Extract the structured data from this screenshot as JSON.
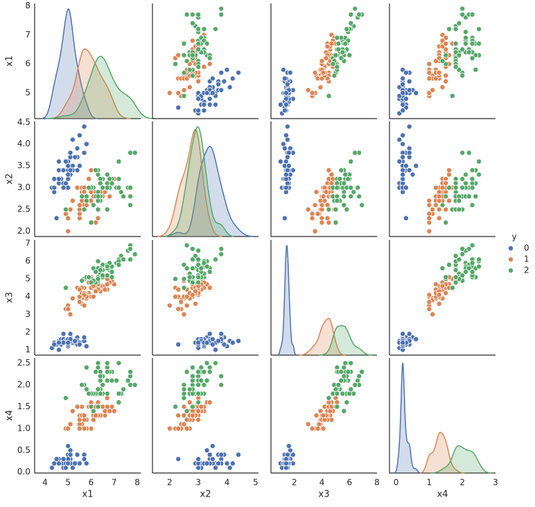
{
  "chart_data": {
    "type": "pairplot",
    "variables": [
      {
        "name": "x1",
        "xlim": [
          3.55,
          8.15
        ],
        "xticks": [
          4,
          5,
          6,
          7,
          8
        ],
        "ylim": [
          4.12,
          8.08
        ],
        "yticks": [
          5,
          6,
          7,
          8
        ]
      },
      {
        "name": "x2",
        "xlim": [
          1.4,
          5.1
        ],
        "xticks": [
          2,
          3,
          4,
          5
        ],
        "ylim": [
          1.88,
          4.52
        ],
        "yticks": [
          {
            "value": 2,
            "label": "2.0"
          },
          {
            "value": 2.5,
            "label": "2.5"
          },
          {
            "value": 3,
            "label": "3.0"
          },
          {
            "value": 3.5,
            "label": "3.5"
          },
          {
            "value": 4,
            "label": "4.0"
          },
          {
            "value": 4.5,
            "label": "4.5"
          }
        ]
      },
      {
        "name": "x3",
        "xlim": [
          0.3,
          8.0
        ],
        "xticks": [
          2,
          4,
          6,
          8
        ],
        "ylim": [
          0.7,
          7.2
        ],
        "yticks": [
          1,
          2,
          3,
          4,
          5,
          6,
          7
        ]
      },
      {
        "name": "x4",
        "xlim": [
          -0.2,
          3.0
        ],
        "xticks": [
          0,
          1,
          2,
          3
        ],
        "ylim": [
          -0.02,
          2.62
        ],
        "yticks": [
          {
            "value": 0,
            "label": "0.0"
          },
          {
            "value": 0.5,
            "label": "0.5"
          },
          {
            "value": 1,
            "label": "1.0"
          },
          {
            "value": 1.5,
            "label": "1.5"
          },
          {
            "value": 2,
            "label": "2.0"
          },
          {
            "value": 2.5,
            "label": "2.5"
          }
        ]
      }
    ],
    "legend_title": "y",
    "legend": "right",
    "series": [
      {
        "name": "0",
        "color": "#4c72b0",
        "values": [
          [
            5.1,
            3.5,
            1.4,
            0.2
          ],
          [
            4.9,
            3.0,
            1.4,
            0.2
          ],
          [
            4.7,
            3.2,
            1.3,
            0.2
          ],
          [
            4.6,
            3.1,
            1.5,
            0.2
          ],
          [
            5.0,
            3.6,
            1.4,
            0.2
          ],
          [
            5.4,
            3.9,
            1.7,
            0.4
          ],
          [
            4.6,
            3.4,
            1.4,
            0.3
          ],
          [
            5.0,
            3.4,
            1.5,
            0.2
          ],
          [
            4.4,
            2.9,
            1.4,
            0.2
          ],
          [
            4.9,
            3.1,
            1.5,
            0.1
          ],
          [
            5.4,
            3.7,
            1.5,
            0.2
          ],
          [
            4.8,
            3.4,
            1.6,
            0.2
          ],
          [
            4.8,
            3.0,
            1.4,
            0.1
          ],
          [
            4.3,
            3.0,
            1.1,
            0.1
          ],
          [
            5.8,
            4.0,
            1.2,
            0.2
          ],
          [
            5.7,
            4.4,
            1.5,
            0.4
          ],
          [
            5.4,
            3.9,
            1.3,
            0.4
          ],
          [
            5.1,
            3.5,
            1.4,
            0.3
          ],
          [
            5.7,
            3.8,
            1.7,
            0.3
          ],
          [
            5.1,
            3.8,
            1.5,
            0.3
          ],
          [
            5.4,
            3.4,
            1.7,
            0.2
          ],
          [
            5.1,
            3.7,
            1.5,
            0.4
          ],
          [
            4.6,
            3.6,
            1.0,
            0.2
          ],
          [
            5.1,
            3.3,
            1.7,
            0.5
          ],
          [
            4.8,
            3.4,
            1.9,
            0.2
          ],
          [
            5.0,
            3.0,
            1.6,
            0.2
          ],
          [
            5.0,
            3.4,
            1.6,
            0.4
          ],
          [
            5.2,
            3.5,
            1.5,
            0.2
          ],
          [
            5.2,
            3.4,
            1.4,
            0.2
          ],
          [
            4.7,
            3.2,
            1.6,
            0.2
          ],
          [
            4.8,
            3.1,
            1.6,
            0.2
          ],
          [
            5.4,
            3.4,
            1.5,
            0.4
          ],
          [
            5.2,
            4.1,
            1.5,
            0.1
          ],
          [
            5.5,
            4.2,
            1.4,
            0.2
          ],
          [
            4.9,
            3.1,
            1.5,
            0.2
          ],
          [
            5.0,
            3.2,
            1.2,
            0.2
          ],
          [
            5.5,
            3.5,
            1.3,
            0.2
          ],
          [
            4.9,
            3.6,
            1.4,
            0.1
          ],
          [
            4.4,
            3.0,
            1.3,
            0.2
          ],
          [
            5.1,
            3.4,
            1.5,
            0.2
          ],
          [
            5.0,
            3.5,
            1.3,
            0.3
          ],
          [
            4.5,
            2.3,
            1.3,
            0.3
          ],
          [
            4.4,
            3.2,
            1.3,
            0.2
          ],
          [
            5.0,
            3.5,
            1.6,
            0.6
          ],
          [
            5.1,
            3.8,
            1.9,
            0.4
          ],
          [
            4.8,
            3.0,
            1.4,
            0.3
          ],
          [
            5.1,
            3.8,
            1.6,
            0.2
          ],
          [
            4.6,
            3.2,
            1.4,
            0.2
          ],
          [
            5.3,
            3.7,
            1.5,
            0.2
          ],
          [
            5.0,
            3.3,
            1.4,
            0.2
          ]
        ]
      },
      {
        "name": "1",
        "color": "#dd8452",
        "values": [
          [
            7.0,
            3.2,
            4.7,
            1.4
          ],
          [
            6.4,
            3.2,
            4.5,
            1.5
          ],
          [
            6.9,
            3.1,
            4.9,
            1.5
          ],
          [
            5.5,
            2.3,
            4.0,
            1.3
          ],
          [
            6.5,
            2.8,
            4.6,
            1.5
          ],
          [
            5.7,
            2.8,
            4.5,
            1.3
          ],
          [
            6.3,
            3.3,
            4.7,
            1.6
          ],
          [
            4.9,
            2.4,
            3.3,
            1.0
          ],
          [
            6.6,
            2.9,
            4.6,
            1.3
          ],
          [
            5.2,
            2.7,
            3.9,
            1.4
          ],
          [
            5.0,
            2.0,
            3.5,
            1.0
          ],
          [
            5.9,
            3.0,
            4.2,
            1.5
          ],
          [
            6.0,
            2.2,
            4.0,
            1.0
          ],
          [
            6.1,
            2.9,
            4.7,
            1.4
          ],
          [
            5.6,
            2.9,
            3.6,
            1.3
          ],
          [
            6.7,
            3.1,
            4.4,
            1.4
          ],
          [
            5.6,
            3.0,
            4.5,
            1.5
          ],
          [
            5.8,
            2.7,
            4.1,
            1.0
          ],
          [
            6.2,
            2.2,
            4.5,
            1.5
          ],
          [
            5.6,
            2.5,
            3.9,
            1.1
          ],
          [
            5.9,
            3.2,
            4.8,
            1.8
          ],
          [
            6.1,
            2.8,
            4.0,
            1.3
          ],
          [
            6.3,
            2.5,
            4.9,
            1.5
          ],
          [
            6.1,
            2.8,
            4.7,
            1.2
          ],
          [
            6.4,
            2.9,
            4.3,
            1.3
          ],
          [
            6.6,
            3.0,
            4.4,
            1.4
          ],
          [
            6.8,
            2.8,
            4.8,
            1.4
          ],
          [
            6.7,
            3.0,
            5.0,
            1.7
          ],
          [
            6.0,
            2.9,
            4.5,
            1.5
          ],
          [
            5.7,
            2.6,
            3.5,
            1.0
          ],
          [
            5.5,
            2.4,
            3.8,
            1.1
          ],
          [
            5.5,
            2.4,
            3.7,
            1.0
          ],
          [
            5.8,
            2.7,
            3.9,
            1.2
          ],
          [
            6.0,
            2.7,
            5.1,
            1.6
          ],
          [
            5.4,
            3.0,
            4.5,
            1.5
          ],
          [
            6.0,
            3.4,
            4.5,
            1.6
          ],
          [
            6.7,
            3.1,
            4.7,
            1.5
          ],
          [
            6.3,
            2.3,
            4.4,
            1.3
          ],
          [
            5.6,
            3.0,
            4.1,
            1.3
          ],
          [
            5.5,
            2.5,
            4.0,
            1.3
          ],
          [
            5.5,
            2.6,
            4.4,
            1.2
          ],
          [
            6.1,
            3.0,
            4.6,
            1.4
          ],
          [
            5.8,
            2.6,
            4.0,
            1.2
          ],
          [
            5.0,
            2.3,
            3.3,
            1.0
          ],
          [
            5.6,
            2.7,
            4.2,
            1.3
          ],
          [
            5.7,
            3.0,
            4.2,
            1.2
          ],
          [
            5.7,
            2.9,
            4.2,
            1.3
          ],
          [
            6.2,
            2.9,
            4.3,
            1.3
          ],
          [
            5.1,
            2.5,
            3.0,
            1.1
          ],
          [
            5.7,
            2.8,
            4.1,
            1.3
          ]
        ]
      },
      {
        "name": "2",
        "color": "#55a868",
        "values": [
          [
            6.3,
            3.3,
            6.0,
            2.5
          ],
          [
            5.8,
            2.7,
            5.1,
            1.9
          ],
          [
            7.1,
            3.0,
            5.9,
            2.1
          ],
          [
            6.3,
            2.9,
            5.6,
            1.8
          ],
          [
            6.5,
            3.0,
            5.8,
            2.2
          ],
          [
            7.6,
            3.0,
            6.6,
            2.1
          ],
          [
            4.9,
            2.5,
            4.5,
            1.7
          ],
          [
            7.3,
            2.9,
            6.3,
            1.8
          ],
          [
            6.7,
            2.5,
            5.8,
            1.8
          ],
          [
            7.2,
            3.6,
            6.1,
            2.5
          ],
          [
            6.5,
            3.2,
            5.1,
            2.0
          ],
          [
            6.4,
            2.7,
            5.3,
            1.9
          ],
          [
            6.8,
            3.0,
            5.5,
            2.1
          ],
          [
            5.7,
            2.5,
            5.0,
            2.0
          ],
          [
            5.8,
            2.8,
            5.1,
            2.4
          ],
          [
            6.4,
            3.2,
            5.3,
            2.3
          ],
          [
            6.5,
            3.0,
            5.5,
            1.8
          ],
          [
            7.7,
            3.8,
            6.7,
            2.2
          ],
          [
            7.7,
            2.6,
            6.9,
            2.3
          ],
          [
            6.0,
            2.2,
            5.0,
            1.5
          ],
          [
            6.9,
            3.2,
            5.7,
            2.3
          ],
          [
            5.6,
            2.8,
            4.9,
            2.0
          ],
          [
            7.7,
            2.8,
            6.7,
            2.0
          ],
          [
            6.3,
            2.7,
            4.9,
            1.8
          ],
          [
            6.7,
            3.3,
            5.7,
            2.1
          ],
          [
            7.2,
            3.2,
            6.0,
            1.8
          ],
          [
            6.2,
            2.8,
            4.8,
            1.8
          ],
          [
            6.1,
            3.0,
            4.9,
            1.8
          ],
          [
            6.4,
            2.8,
            5.6,
            2.1
          ],
          [
            7.2,
            3.0,
            5.8,
            1.6
          ],
          [
            7.4,
            2.8,
            6.1,
            1.9
          ],
          [
            7.9,
            3.8,
            6.4,
            2.0
          ],
          [
            6.4,
            2.8,
            5.6,
            2.2
          ],
          [
            6.3,
            2.8,
            5.1,
            1.5
          ],
          [
            6.1,
            2.6,
            5.6,
            1.4
          ],
          [
            7.7,
            3.0,
            6.1,
            2.3
          ],
          [
            6.3,
            3.4,
            5.6,
            2.4
          ],
          [
            6.4,
            3.1,
            5.5,
            1.8
          ],
          [
            6.0,
            3.0,
            4.8,
            1.8
          ],
          [
            6.9,
            3.1,
            5.4,
            2.1
          ],
          [
            6.7,
            3.1,
            5.6,
            2.4
          ],
          [
            6.9,
            3.1,
            5.1,
            2.3
          ],
          [
            5.8,
            2.7,
            5.1,
            1.9
          ],
          [
            6.8,
            3.2,
            5.9,
            2.3
          ],
          [
            6.7,
            3.3,
            5.7,
            2.5
          ],
          [
            6.7,
            3.0,
            5.2,
            2.3
          ],
          [
            6.3,
            2.5,
            5.0,
            1.9
          ],
          [
            6.5,
            3.0,
            5.2,
            2.0
          ],
          [
            6.2,
            3.4,
            5.4,
            2.3
          ],
          [
            5.9,
            3.0,
            5.1,
            1.8
          ]
        ]
      }
    ]
  }
}
